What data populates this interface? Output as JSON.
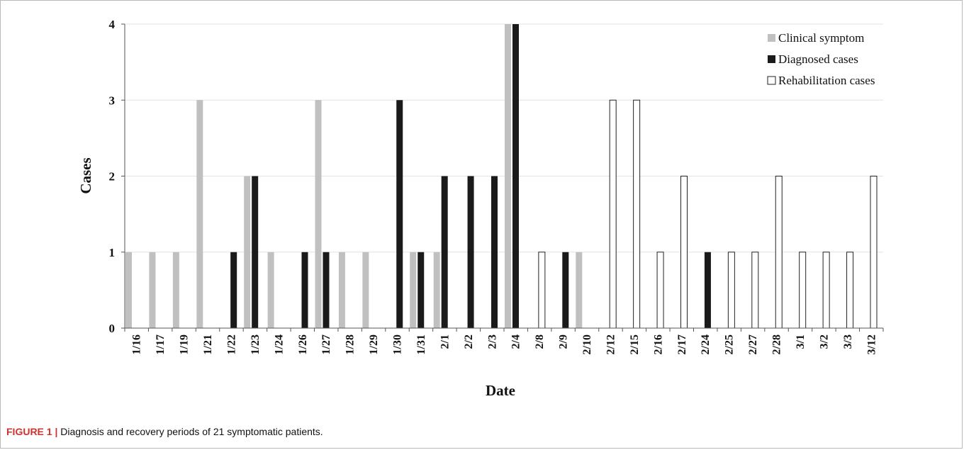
{
  "chart_data": {
    "type": "bar",
    "xlabel": "Date",
    "ylabel": "Cases",
    "ylim": [
      0,
      4
    ],
    "yticks": [
      0,
      1,
      2,
      3,
      4
    ],
    "grid": true,
    "legend_position": "top-right",
    "categories": [
      "1/16",
      "1/17",
      "1/19",
      "1/21",
      "1/22",
      "1/23",
      "1/24",
      "1/26",
      "1/27",
      "1/28",
      "1/29",
      "1/30",
      "1/31",
      "2/1",
      "2/2",
      "2/3",
      "2/4",
      "2/8",
      "2/9",
      "2/10",
      "2/12",
      "2/15",
      "2/16",
      "2/17",
      "2/24",
      "2/25",
      "2/27",
      "2/28",
      "3/1",
      "3/2",
      "3/3",
      "3/12"
    ],
    "series": [
      {
        "name": "Clinical symptom",
        "color": "#c0c0c0",
        "values": [
          1,
          1,
          1,
          3,
          0,
          2,
          1,
          0,
          3,
          1,
          1,
          0,
          1,
          1,
          0,
          0,
          4,
          0,
          0,
          1,
          0,
          0,
          0,
          0,
          0,
          0,
          0,
          0,
          0,
          0,
          0,
          0
        ]
      },
      {
        "name": "Diagnosed cases",
        "color": "#1a1a1a",
        "values": [
          0,
          0,
          0,
          0,
          1,
          2,
          0,
          1,
          1,
          0,
          0,
          3,
          1,
          2,
          2,
          2,
          4,
          0,
          1,
          0,
          0,
          0,
          0,
          0,
          1,
          0,
          0,
          0,
          0,
          0,
          0,
          0
        ]
      },
      {
        "name": "Rehabilitation cases",
        "color": "#ffffff",
        "values": [
          0,
          0,
          0,
          0,
          0,
          0,
          0,
          0,
          0,
          0,
          0,
          0,
          0,
          0,
          0,
          0,
          0,
          1,
          0,
          0,
          3,
          3,
          1,
          2,
          0,
          1,
          1,
          2,
          1,
          1,
          1,
          2
        ]
      }
    ]
  },
  "caption": {
    "label": "FIGURE 1",
    "separator": "|",
    "text": "Diagnosis and recovery periods of 21 symptomatic patients."
  }
}
